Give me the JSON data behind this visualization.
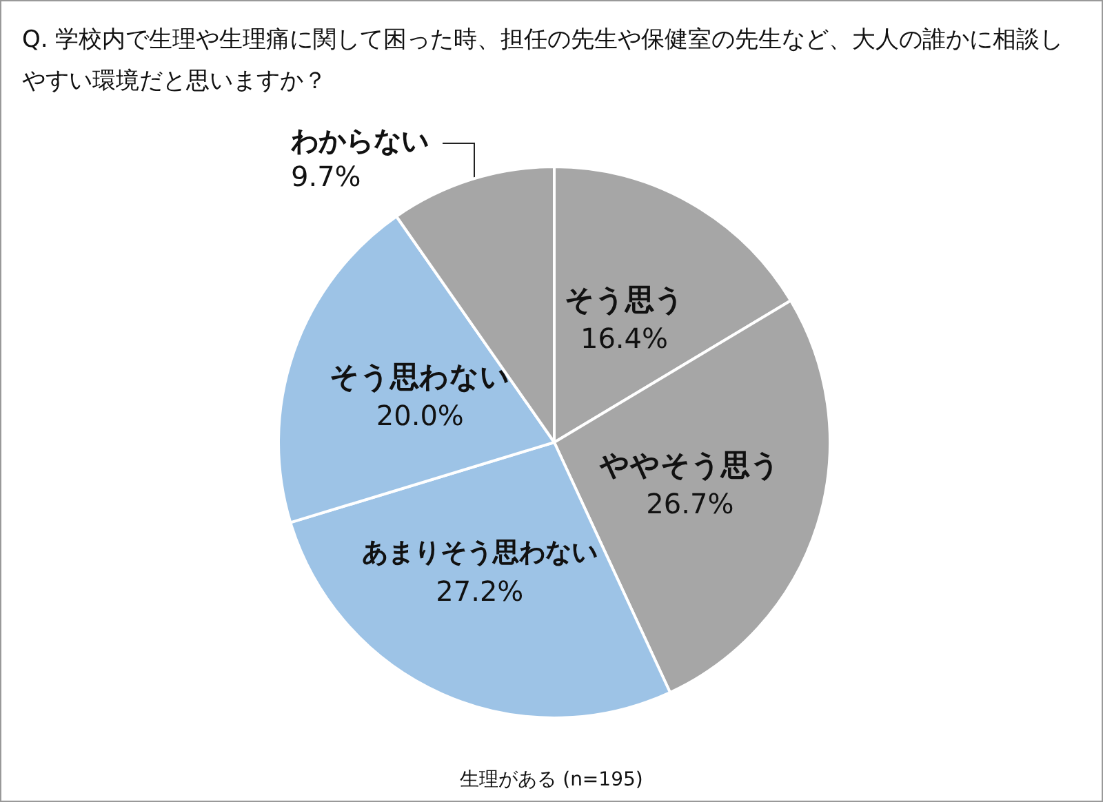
{
  "chart_data": {
    "type": "pie",
    "title": "Q. 学校内で生理や生理痛に関して困った時、担任の先生や保健室の先生など、大人の誰かに相談しやすい環境だと思いますか？",
    "categories": [
      "そう思う",
      "ややそう思う",
      "あまりそう思わない",
      "そう思わない",
      "わからない"
    ],
    "values": [
      16.4,
      26.7,
      27.2,
      20.0,
      9.7
    ],
    "value_labels": [
      "16.4%",
      "26.7%",
      "27.2%",
      "20.0%",
      "9.7%"
    ],
    "colors": [
      "#a6a6a6",
      "#a6a6a6",
      "#9dc3e6",
      "#9dc3e6",
      "#a6a6a6"
    ],
    "annotations": [
      "生理がある (n=195)"
    ],
    "legend": false
  }
}
